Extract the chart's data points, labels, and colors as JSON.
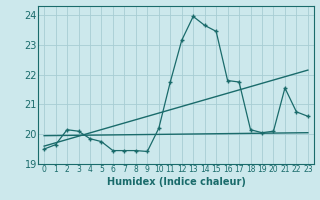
{
  "xlabel": "Humidex (Indice chaleur)",
  "bg_color": "#cce8ec",
  "grid_color": "#a8cdd4",
  "line_color": "#1a6b6b",
  "xlim": [
    -0.5,
    23.5
  ],
  "ylim": [
    19.0,
    24.3
  ],
  "yticks": [
    19,
    20,
    21,
    22,
    23,
    24
  ],
  "xtick_labels": [
    "0",
    "1",
    "2",
    "3",
    "4",
    "5",
    "6",
    "7",
    "8",
    "9",
    "10",
    "11",
    "12",
    "13",
    "14",
    "15",
    "16",
    "17",
    "18",
    "19",
    "20",
    "21",
    "22",
    "23"
  ],
  "line1_x": [
    0,
    1,
    2,
    3,
    4,
    5,
    6,
    7,
    8,
    9,
    10,
    11,
    12,
    13,
    14,
    15,
    16,
    17,
    18,
    19,
    20,
    21,
    22,
    23
  ],
  "line1_y": [
    19.5,
    19.65,
    20.15,
    20.1,
    19.85,
    19.75,
    19.45,
    19.45,
    19.45,
    19.42,
    20.2,
    21.75,
    23.15,
    23.95,
    23.65,
    23.45,
    21.8,
    21.75,
    20.15,
    20.05,
    20.1,
    21.55,
    20.75,
    20.6
  ],
  "line2_x": [
    0,
    23
  ],
  "line2_y": [
    19.95,
    20.05
  ],
  "line3_x": [
    0,
    23
  ],
  "line3_y": [
    19.6,
    22.15
  ]
}
